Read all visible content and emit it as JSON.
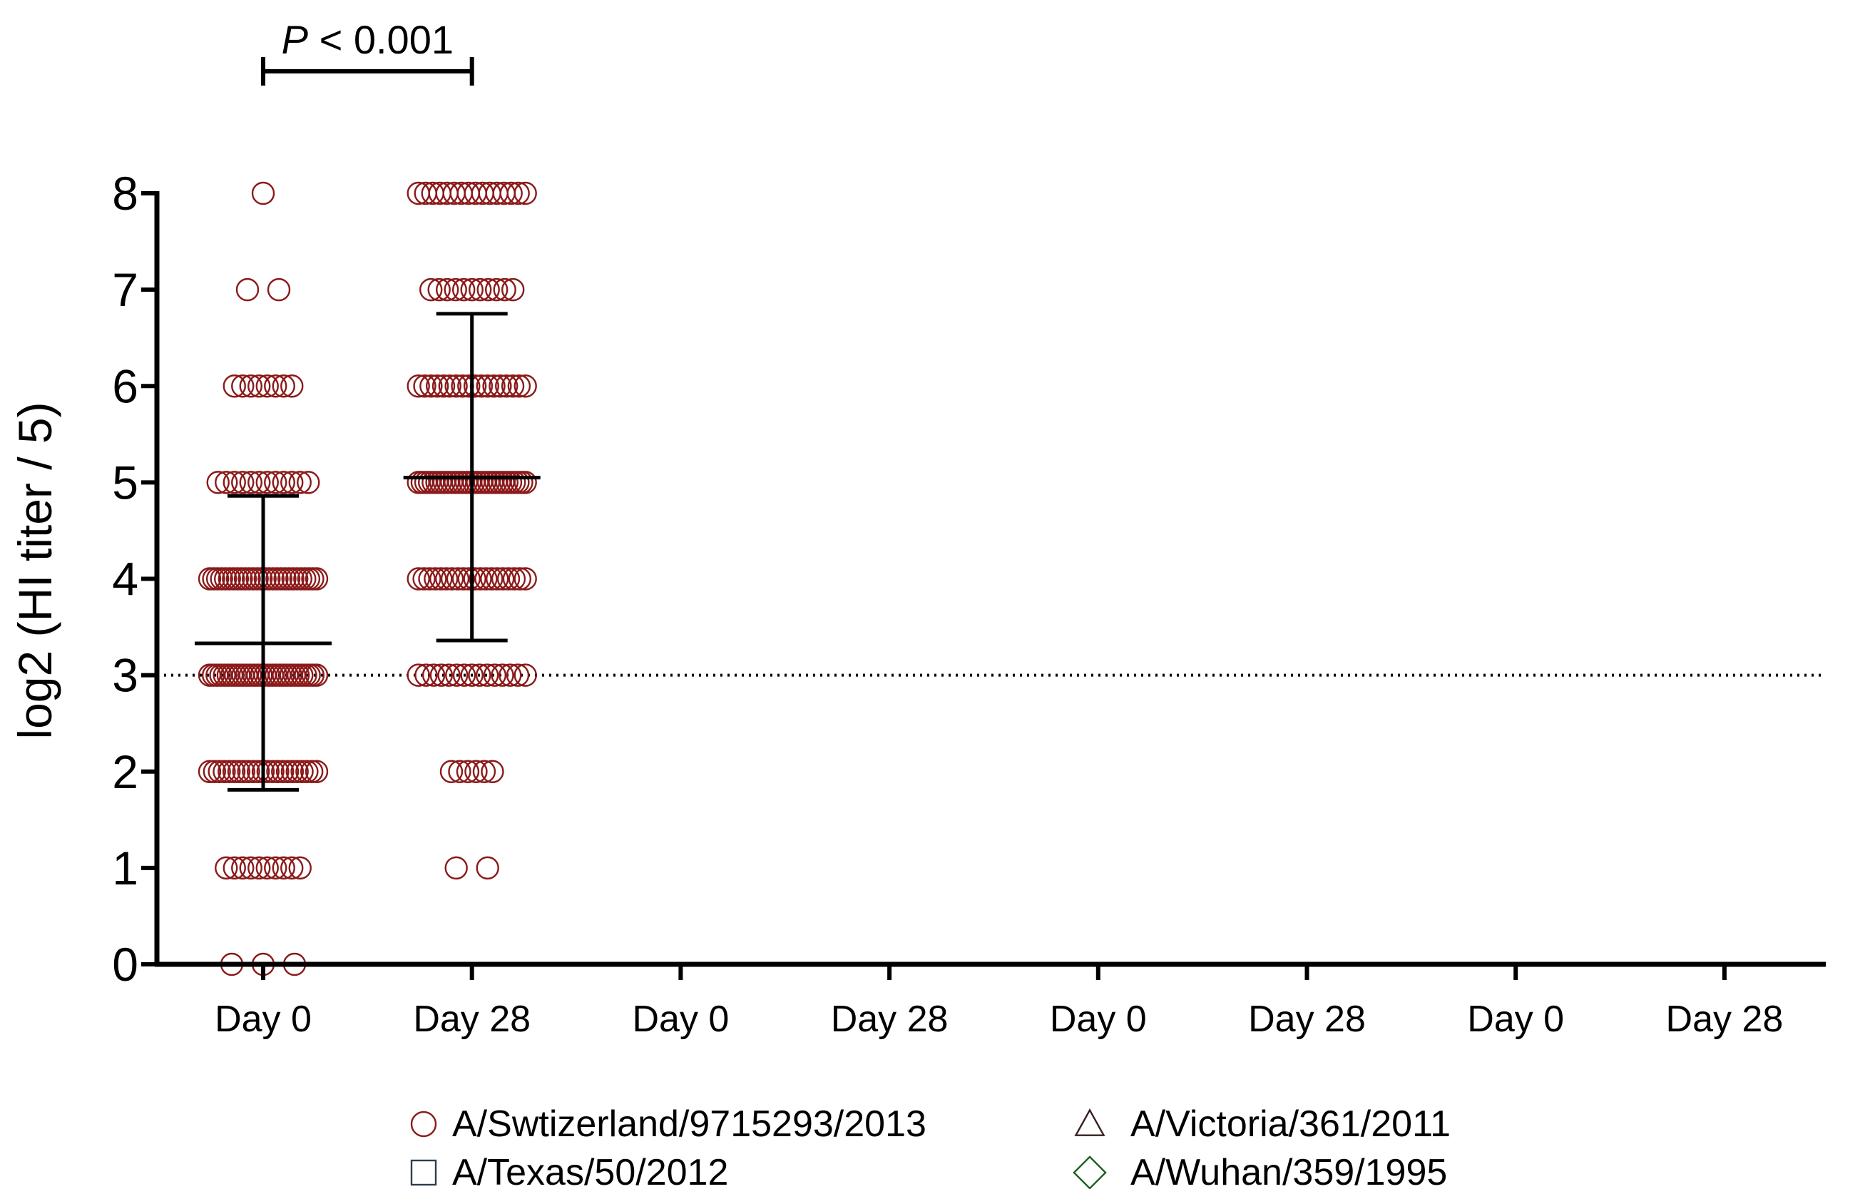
{
  "chart_data": {
    "type": "scatter",
    "ylabel": "log2 (HI titer / 5)",
    "ylim": [
      0,
      8
    ],
    "y_ticks": [
      "0",
      "1",
      "2",
      "3",
      "4",
      "5",
      "6",
      "7",
      "8"
    ],
    "categories": [
      "Day 0",
      "Day 28",
      "Day 0",
      "Day 28",
      "Day 0",
      "Day 28",
      "Day 0",
      "Day 28"
    ],
    "reference_line": {
      "y": 3,
      "style": "dotted"
    },
    "significance": {
      "from": 0,
      "to": 1,
      "p_prefix": "P",
      "p_rest": " < 0.001"
    },
    "legend_placement": "bottom",
    "series": [
      {
        "name": "A/Swtizerland/9715293/2013",
        "marker": "circle",
        "color": "#8B1A1A",
        "groups": [
          {
            "category_index": 0,
            "mean": 3.33,
            "sd_low": 1.81,
            "sd_high": 4.86,
            "counts": {
              "0": 3,
              "1": 10,
              "2": 23,
              "3": 30,
              "4": 28,
              "5": 12,
              "6": 8,
              "7": 2,
              "8": 1
            }
          },
          {
            "category_index": 1,
            "mean": 5.05,
            "sd_low": 3.36,
            "sd_high": 6.75,
            "counts": {
              "1": 2,
              "2": 6,
              "3": 15,
              "4": 20,
              "5": 30,
              "6": 18,
              "7": 11,
              "8": 16
            }
          }
        ]
      },
      {
        "name": "A/Texas/50/2012",
        "marker": "square",
        "color": "#2C3E50",
        "groups": []
      },
      {
        "name": "A/Victoria/361/2011",
        "marker": "triangle",
        "color": "#3A1F1F",
        "groups": []
      },
      {
        "name": "A/Wuhan/359/1995",
        "marker": "diamond",
        "color": "#1E5E1E",
        "groups": []
      }
    ]
  }
}
